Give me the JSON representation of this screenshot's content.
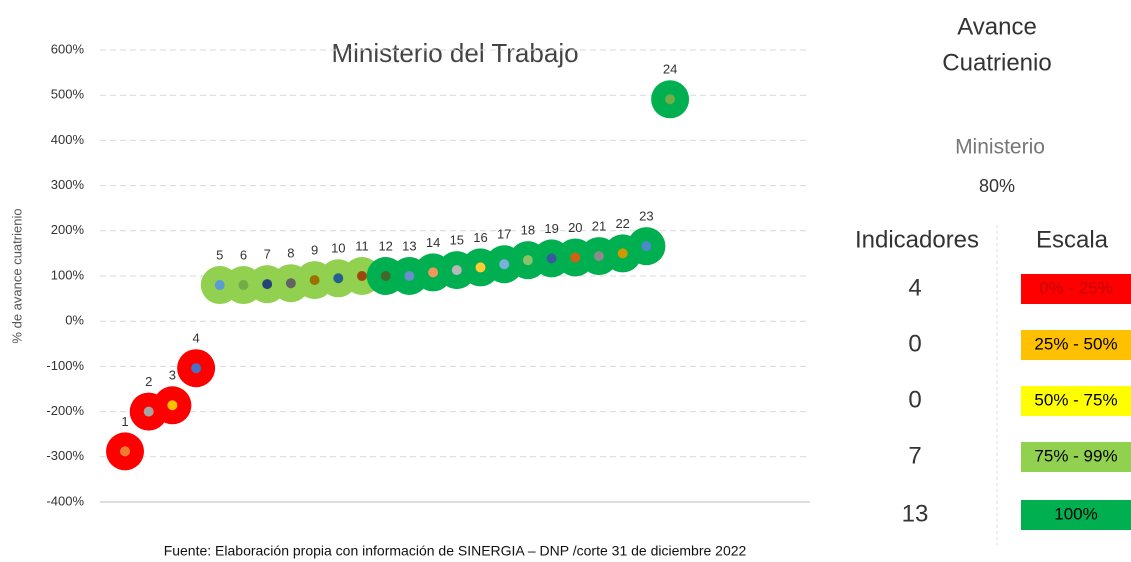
{
  "chart_data": {
    "type": "scatter",
    "title": "Ministerio del Trabajo",
    "y_label": "% de avance cuatrienio",
    "categories": [
      "1",
      "2",
      "3",
      "4",
      "5",
      "6",
      "7",
      "8",
      "9",
      "10",
      "11",
      "12",
      "13",
      "14",
      "15",
      "16",
      "17",
      "18",
      "19",
      "20",
      "21",
      "22",
      "23",
      "24"
    ],
    "values": [
      -288,
      -200,
      -186,
      -104,
      80,
      80,
      82,
      84,
      91,
      95,
      100,
      100,
      100,
      108,
      113,
      119,
      126,
      135,
      139,
      141,
      144,
      150,
      166,
      491
    ],
    "colors": [
      "#ff0000",
      "#ff0000",
      "#ff0000",
      "#ff0000",
      "#92d050",
      "#92d050",
      "#92d050",
      "#92d050",
      "#92d050",
      "#92d050",
      "#92d050",
      "#00b050",
      "#00b050",
      "#00b050",
      "#00b050",
      "#00b050",
      "#00b050",
      "#00b050",
      "#00b050",
      "#00b050",
      "#00b050",
      "#00b050",
      "#00b050",
      "#00b050"
    ],
    "inner_colors": [
      "#ed7d31",
      "#a5a5a5",
      "#ffc000",
      "#4472c4",
      "#5b9bd5",
      "#70ad47",
      "#264478",
      "#636363",
      "#997300",
      "#255e91",
      "#9e480e",
      "#43682b",
      "#698ed0",
      "#f1975a",
      "#b7b7b7",
      "#ffcd33",
      "#7cafdd",
      "#8cc168",
      "#3a5a9e",
      "#d26012",
      "#8b8b8b",
      "#cc9a00",
      "#4b8ac6",
      "#70ad47"
    ],
    "ylim": [
      -400,
      600
    ],
    "yticks": [
      {
        "value": -400,
        "label": "-400%"
      },
      {
        "value": -300,
        "label": "-300%"
      },
      {
        "value": -200,
        "label": "-200%"
      },
      {
        "value": -100,
        "label": "-100%"
      },
      {
        "value": 0,
        "label": "0%"
      },
      {
        "value": 100,
        "label": "100%"
      },
      {
        "value": 200,
        "label": "200%"
      },
      {
        "value": 300,
        "label": "300%"
      },
      {
        "value": 400,
        "label": "400%"
      },
      {
        "value": 500,
        "label": "500%"
      },
      {
        "value": 600,
        "label": "600%"
      }
    ],
    "grid": true
  },
  "panel": {
    "title_1": "Avance",
    "title_2": "Cuatrienio",
    "entity": "Ministerio",
    "entity_value": "80%",
    "col_indicators": "Indicadores",
    "col_scale": "Escala",
    "rows": [
      {
        "count": "4",
        "scale": "0% - 25%",
        "color": "#ff0000",
        "text_color": "#c00000"
      },
      {
        "count": "0",
        "scale": "25% - 50%",
        "color": "#ffc000",
        "text_color": "#000000"
      },
      {
        "count": "0",
        "scale": "50% - 75%",
        "color": "#ffff00",
        "text_color": "#000000"
      },
      {
        "count": "7",
        "scale": "75% - 99%",
        "color": "#92d050",
        "text_color": "#000000"
      },
      {
        "count": "13",
        "scale": "100%",
        "color": "#00b050",
        "text_color": "#000000"
      }
    ]
  },
  "source": "Fuente: Elaboración propia con información de SINERGIA – DNP /corte 31 de diciembre 2022"
}
